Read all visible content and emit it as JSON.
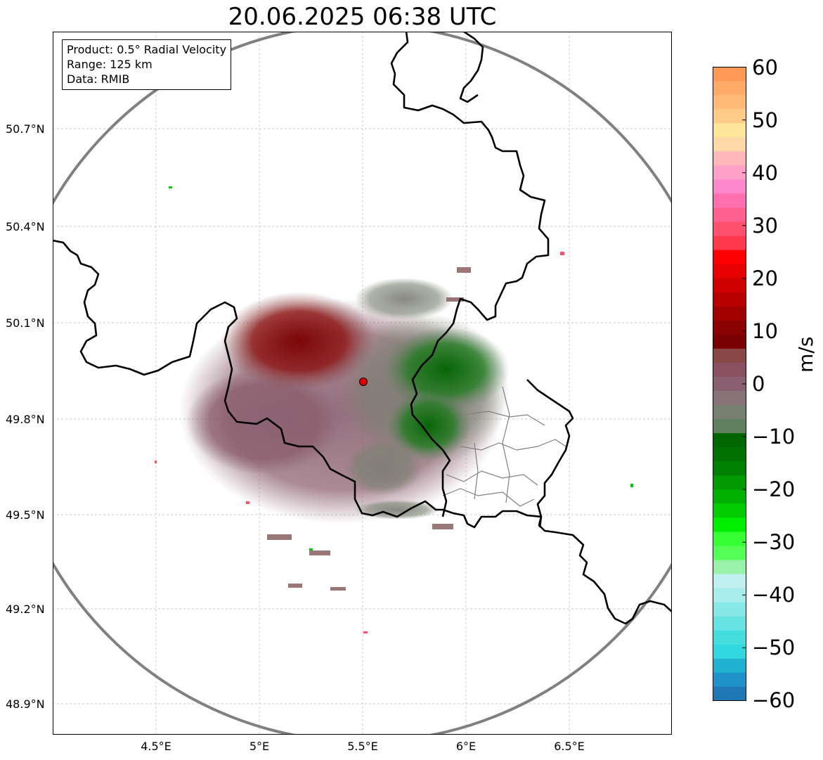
{
  "title": "20.06.2025 06:38 UTC",
  "info": {
    "product": "Product: 0.5° Radial Velocity",
    "range": "Range: 125 km",
    "source": "Data: RMIB"
  },
  "axes": {
    "lat_labels": [
      "50.7°N",
      "50.4°N",
      "50.1°N",
      "49.8°N",
      "49.5°N",
      "49.2°N",
      "48.9°N"
    ],
    "lon_labels": [
      "4.5°E",
      "5°E",
      "5.5°E",
      "6°E",
      "6.5°E"
    ]
  },
  "colorbar": {
    "label": "m/s",
    "ticks": [
      "60",
      "50",
      "40",
      "30",
      "20",
      "10",
      "0",
      "−10",
      "−20",
      "−30",
      "−40",
      "−50",
      "−60"
    ],
    "colors": [
      "#ff9955",
      "#ffaa66",
      "#ffbb77",
      "#ffcc88",
      "#ffe699",
      "#ffd8a8",
      "#ffb8b8",
      "#ffa0c8",
      "#ff88cc",
      "#ff70b0",
      "#ff6090",
      "#ff5070",
      "#ff3850",
      "#ff0000",
      "#e80000",
      "#d00000",
      "#b80000",
      "#a00000",
      "#8b0000",
      "#780000",
      "#884848",
      "#885060",
      "#886070",
      "#887478",
      "#788070",
      "#608060",
      "#006600",
      "#007000",
      "#008000",
      "#009900",
      "#00b000",
      "#00cc00",
      "#00ee00",
      "#33ff33",
      "#55ff55",
      "#99f2aa",
      "#c0f0f0",
      "#a8ecec",
      "#88e8e8",
      "#66e2e2",
      "#44dede",
      "#30d8e0",
      "#20b0d0",
      "#2090c8",
      "#1f77b4"
    ]
  },
  "colors": {
    "positive_velocity": "#8b0000",
    "negative_velocity": "#006400",
    "near_zero": "#887474",
    "radar_site": "#e00000",
    "range_ring": "#808080",
    "border": "#000000",
    "admin_border": "#808080"
  }
}
